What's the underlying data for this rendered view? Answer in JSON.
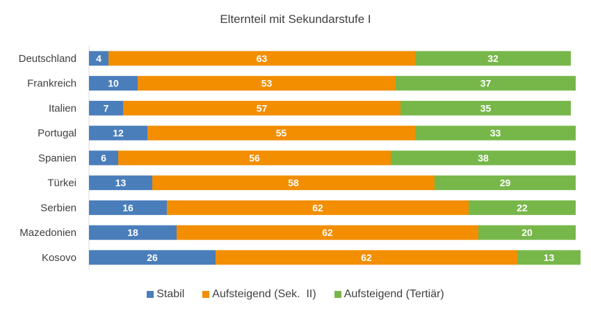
{
  "chart_data": {
    "type": "bar",
    "orientation": "horizontal",
    "stacked": true,
    "title": "Elternteil mit Sekundarstufe I",
    "categories": [
      "Deutschland",
      "Frankreich",
      "Italien",
      "Portugal",
      "Spanien",
      "Türkei",
      "Serbien",
      "Mazedonien",
      "Kosovo"
    ],
    "series": [
      {
        "name": "Stabil",
        "color": "#4a7ebb",
        "values": [
          4,
          10,
          7,
          12,
          6,
          13,
          16,
          18,
          26
        ]
      },
      {
        "name": "Aufsteigend (Sek.  II)",
        "color": "#f28e00",
        "values": [
          63,
          53,
          57,
          55,
          56,
          58,
          62,
          62,
          62
        ]
      },
      {
        "name": "Aufsteigend (Tertiär)",
        "color": "#77b74a",
        "values": [
          32,
          37,
          35,
          33,
          38,
          29,
          22,
          20,
          13
        ]
      }
    ],
    "xlim": [
      0,
      100
    ],
    "grid": false,
    "legend_position": "bottom",
    "data_labels": true
  }
}
